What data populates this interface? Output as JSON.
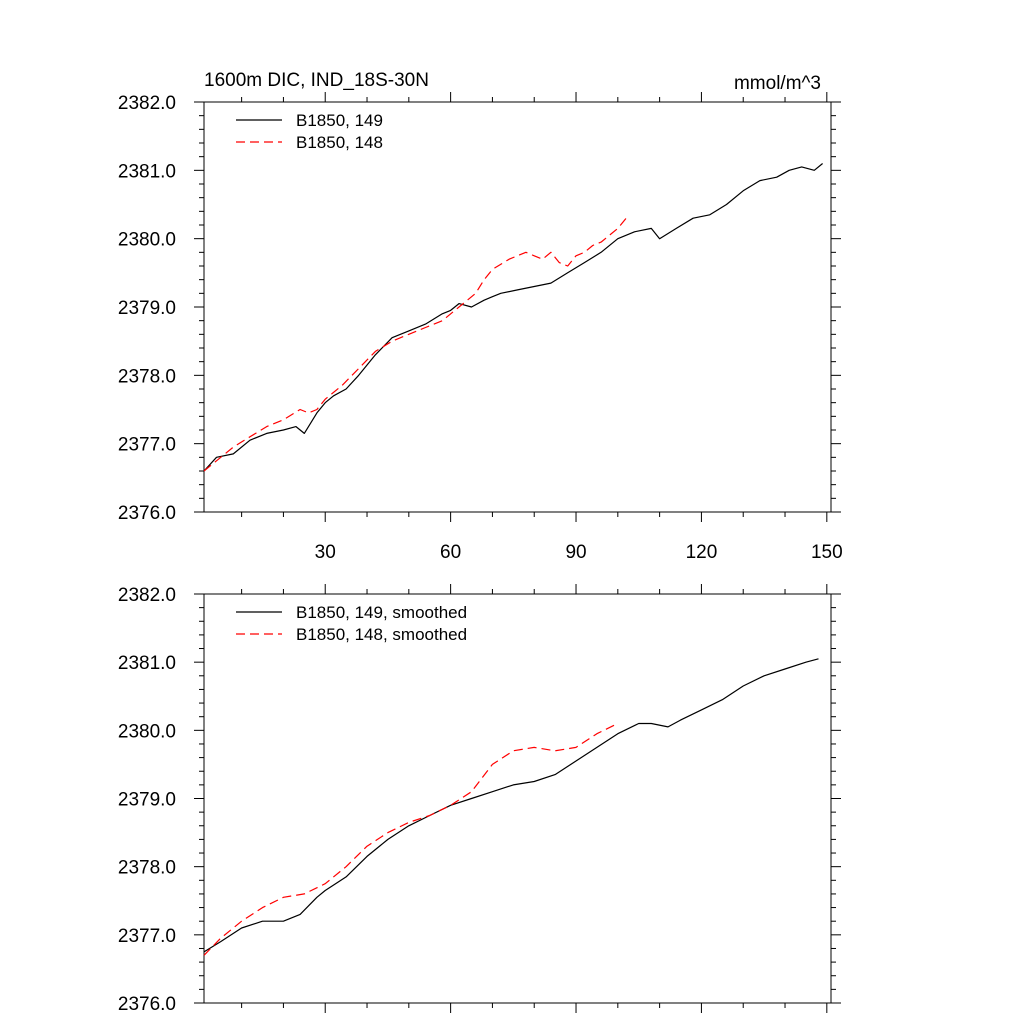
{
  "colors": {
    "series_149": "#000000",
    "series_148": "#ff0000",
    "background": "#ffffff"
  },
  "chart_data": [
    {
      "type": "line",
      "title": "1600m DIC, IND_18S-30N",
      "units": "mmol/m^3",
      "xlabel": "",
      "ylabel": "",
      "xlim": [
        1,
        151
      ],
      "ylim": [
        2376.0,
        2382.0
      ],
      "x_ticks": [
        30,
        60,
        90,
        120,
        150
      ],
      "x_tick_labels": [
        "30",
        "60",
        "90",
        "120",
        "150"
      ],
      "y_ticks": [
        2376.0,
        2377.0,
        2378.0,
        2379.0,
        2380.0,
        2381.0,
        2382.0
      ],
      "y_tick_labels": [
        "2376.0",
        "2377.0",
        "2378.0",
        "2379.0",
        "2380.0",
        "2381.0",
        "2382.0"
      ],
      "legend_position": "top-left",
      "series": [
        {
          "name": "B1850, 149",
          "color": "#000000",
          "dash": "solid",
          "x": [
            1,
            4,
            8,
            12,
            16,
            20,
            23,
            25,
            28,
            30,
            32,
            35,
            38,
            42,
            46,
            50,
            54,
            58,
            60,
            62,
            65,
            68,
            70,
            72,
            76,
            80,
            84,
            88,
            92,
            96,
            100,
            104,
            108,
            110,
            114,
            118,
            122,
            126,
            130,
            134,
            138,
            141,
            144,
            147,
            149
          ],
          "values": [
            2376.6,
            2376.8,
            2376.85,
            2377.05,
            2377.15,
            2377.2,
            2377.25,
            2377.15,
            2377.45,
            2377.6,
            2377.7,
            2377.8,
            2378.0,
            2378.3,
            2378.55,
            2378.65,
            2378.75,
            2378.9,
            2378.95,
            2379.05,
            2379.0,
            2379.1,
            2379.15,
            2379.2,
            2379.25,
            2379.3,
            2379.35,
            2379.5,
            2379.65,
            2379.8,
            2380.0,
            2380.1,
            2380.15,
            2380.0,
            2380.15,
            2380.3,
            2380.35,
            2380.5,
            2380.7,
            2380.85,
            2380.9,
            2381.0,
            2381.05,
            2381.0,
            2381.1
          ]
        },
        {
          "name": "B1850, 148",
          "color": "#ff0000",
          "dash": "dashed",
          "x": [
            1,
            4,
            8,
            12,
            16,
            20,
            24,
            26,
            28,
            30,
            34,
            38,
            42,
            46,
            50,
            54,
            58,
            62,
            66,
            68,
            70,
            74,
            78,
            80,
            82,
            84,
            86,
            88,
            90,
            92,
            94,
            96,
            98,
            100,
            102
          ],
          "values": [
            2376.6,
            2376.75,
            2376.95,
            2377.1,
            2377.25,
            2377.35,
            2377.5,
            2377.45,
            2377.5,
            2377.65,
            2377.85,
            2378.1,
            2378.35,
            2378.5,
            2378.6,
            2378.7,
            2378.8,
            2379.0,
            2379.2,
            2379.4,
            2379.55,
            2379.7,
            2379.8,
            2379.75,
            2379.7,
            2379.8,
            2379.65,
            2379.6,
            2379.75,
            2379.8,
            2379.9,
            2379.95,
            2380.05,
            2380.15,
            2380.3
          ]
        }
      ]
    },
    {
      "type": "line",
      "title": "",
      "units": "",
      "xlabel": "",
      "ylabel": "",
      "xlim": [
        1,
        151
      ],
      "ylim": [
        2376.0,
        2382.0
      ],
      "x_ticks": [
        30,
        60,
        90,
        120,
        150
      ],
      "x_tick_labels": [],
      "y_ticks": [
        2376.0,
        2377.0,
        2378.0,
        2379.0,
        2380.0,
        2381.0,
        2382.0
      ],
      "y_tick_labels": [
        "2376.0",
        "2377.0",
        "2378.0",
        "2379.0",
        "2380.0",
        "2381.0",
        "2382.0"
      ],
      "legend_position": "top-left",
      "series": [
        {
          "name": "B1850, 149, smoothed",
          "color": "#000000",
          "dash": "solid",
          "x": [
            1,
            5,
            10,
            15,
            20,
            24,
            28,
            30,
            35,
            40,
            45,
            50,
            55,
            60,
            65,
            70,
            75,
            80,
            85,
            90,
            95,
            100,
            105,
            108,
            112,
            115,
            120,
            125,
            130,
            135,
            140,
            145,
            148
          ],
          "values": [
            2376.75,
            2376.9,
            2377.1,
            2377.2,
            2377.2,
            2377.3,
            2377.55,
            2377.65,
            2377.85,
            2378.15,
            2378.4,
            2378.6,
            2378.75,
            2378.9,
            2379.0,
            2379.1,
            2379.2,
            2379.25,
            2379.35,
            2379.55,
            2379.75,
            2379.95,
            2380.1,
            2380.1,
            2380.05,
            2380.15,
            2380.3,
            2380.45,
            2380.65,
            2380.8,
            2380.9,
            2381.0,
            2381.05
          ]
        },
        {
          "name": "B1850, 148, smoothed",
          "color": "#ff0000",
          "dash": "dashed",
          "x": [
            1,
            5,
            10,
            15,
            20,
            25,
            30,
            35,
            40,
            45,
            50,
            55,
            60,
            65,
            70,
            75,
            80,
            85,
            90,
            95,
            100
          ],
          "values": [
            2376.7,
            2376.95,
            2377.2,
            2377.4,
            2377.55,
            2377.6,
            2377.75,
            2378.0,
            2378.3,
            2378.5,
            2378.65,
            2378.75,
            2378.9,
            2379.1,
            2379.5,
            2379.7,
            2379.75,
            2379.7,
            2379.75,
            2379.95,
            2380.1
          ]
        }
      ]
    }
  ]
}
